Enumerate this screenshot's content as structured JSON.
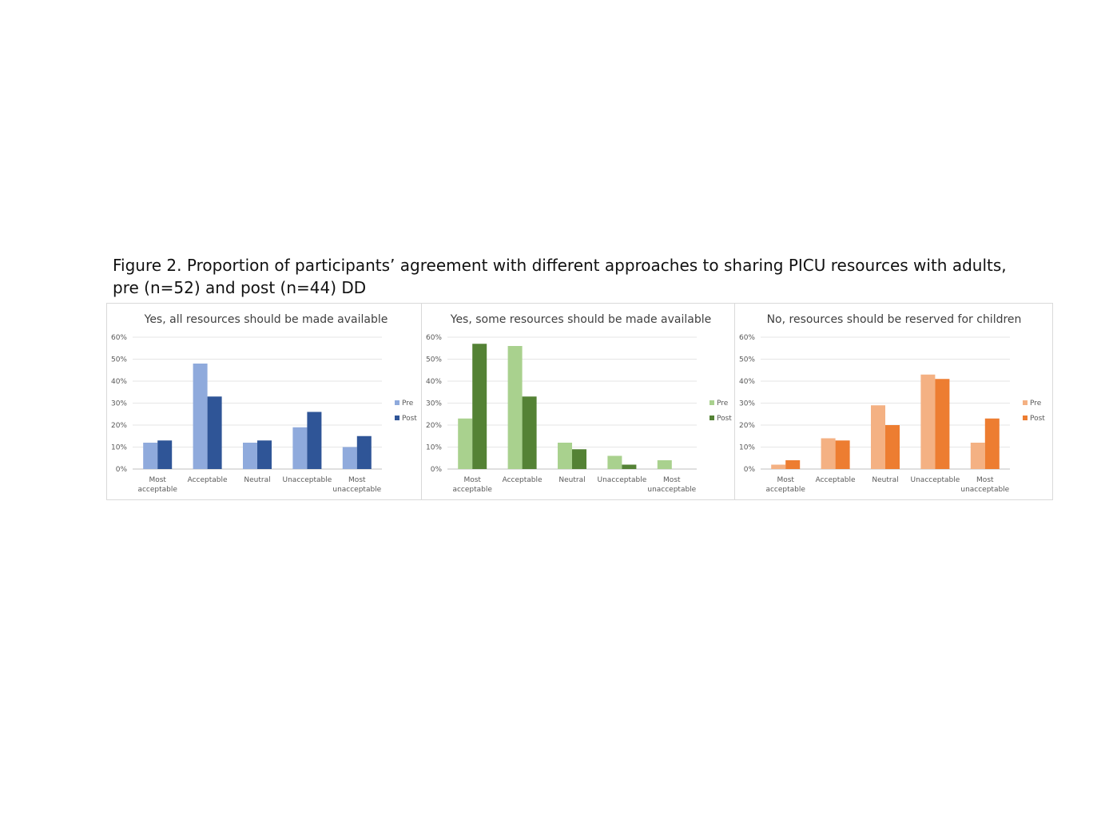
{
  "figure": {
    "title_line1": "Figure 2. Proportion of participants’ agreement with different approaches to sharing PICU resources with adults,",
    "title_line2": "pre (n=52) and post (n=44) DD"
  },
  "chart_data": [
    {
      "type": "bar",
      "title": "Yes, all resources should be made available",
      "categories": [
        [
          "Most",
          "acceptable"
        ],
        [
          "Acceptable"
        ],
        [
          "Neutral"
        ],
        [
          "Unacceptable"
        ],
        [
          "Most",
          "unacceptable"
        ]
      ],
      "series": [
        {
          "name": "Pre",
          "color": "#8faadc",
          "values": [
            12,
            48,
            12,
            19,
            10
          ]
        },
        {
          "name": "Post",
          "color": "#2f5597",
          "values": [
            13,
            33,
            13,
            26,
            15
          ]
        }
      ],
      "yticks": [
        "0%",
        "10%",
        "20%",
        "30%",
        "40%",
        "50%",
        "60%"
      ],
      "ylim": [
        0,
        60
      ],
      "grid": true,
      "legend": "right"
    },
    {
      "type": "bar",
      "title": "Yes, some resources should be made available",
      "categories": [
        [
          "Most",
          "acceptable"
        ],
        [
          "Acceptable"
        ],
        [
          "Neutral"
        ],
        [
          "Unacceptable"
        ],
        [
          "Most",
          "unacceptable"
        ]
      ],
      "series": [
        {
          "name": "Pre",
          "color": "#a9d18e",
          "values": [
            23,
            56,
            12,
            6,
            4
          ]
        },
        {
          "name": "Post",
          "color": "#548235",
          "values": [
            57,
            33,
            9,
            2,
            0
          ]
        }
      ],
      "yticks": [
        "0%",
        "10%",
        "20%",
        "30%",
        "40%",
        "50%",
        "60%"
      ],
      "ylim": [
        0,
        60
      ],
      "grid": true,
      "legend": "right"
    },
    {
      "type": "bar",
      "title": "No, resources should be reserved for children",
      "categories": [
        [
          "Most",
          "acceptable"
        ],
        [
          "Acceptable"
        ],
        [
          "Neutral"
        ],
        [
          "Unacceptable"
        ],
        [
          "Most",
          "unacceptable"
        ]
      ],
      "series": [
        {
          "name": "Pre",
          "color": "#f4b183",
          "values": [
            2,
            14,
            29,
            43,
            12
          ]
        },
        {
          "name": "Post",
          "color": "#ed7d31",
          "values": [
            4,
            13,
            20,
            41,
            23
          ]
        }
      ],
      "yticks": [
        "0%",
        "10%",
        "20%",
        "30%",
        "40%",
        "50%",
        "60%"
      ],
      "ylim": [
        0,
        60
      ],
      "grid": true,
      "legend": "right"
    }
  ]
}
